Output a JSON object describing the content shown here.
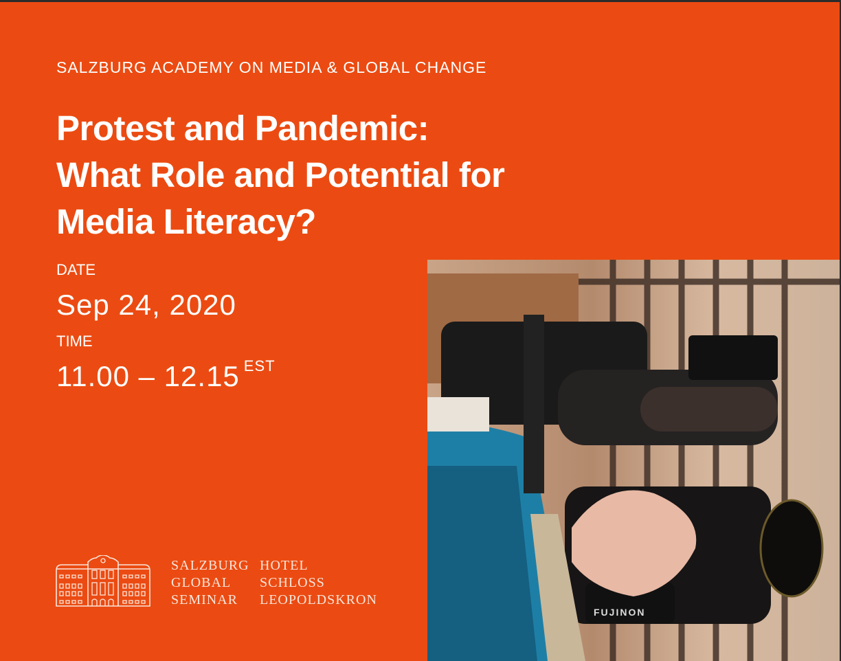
{
  "kicker": "SALZBURG ACADEMY ON MEDIA & GLOBAL CHANGE",
  "title_lines": [
    "Protest and Pandemic:",
    "What Role and Potential for",
    "Media Literacy?"
  ],
  "date": {
    "label": "DATE",
    "value": "Sep 24, 2020"
  },
  "time": {
    "label": "TIME",
    "value": "11.00 – 12.15",
    "zone": "EST"
  },
  "logos": {
    "sgs": [
      "SALZBURG",
      "GLOBAL",
      "SEMINAR"
    ],
    "hotel": [
      "HOTEL",
      "SCHLOSS",
      "LEOPOLDSKRON"
    ]
  },
  "photo": {
    "camera_brand": "FUJINON"
  },
  "colors": {
    "background": "#eb4b12",
    "text": "#ffffff"
  }
}
